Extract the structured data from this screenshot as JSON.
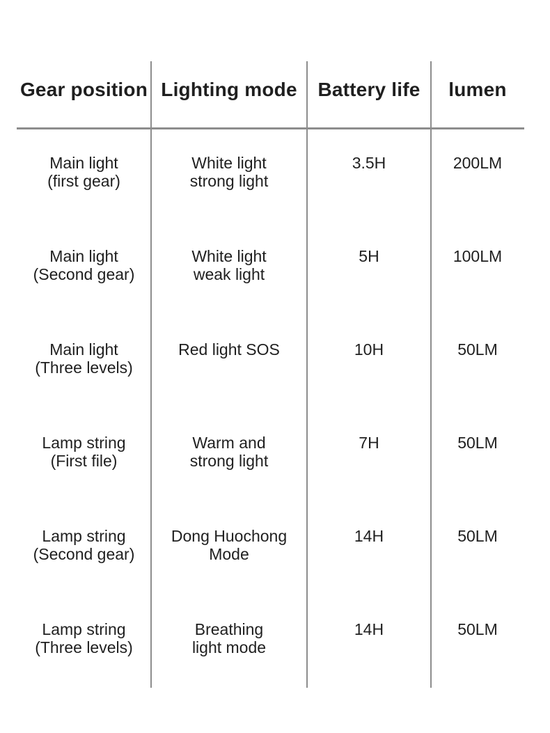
{
  "chart_data": {
    "type": "table",
    "title": "",
    "columns": [
      "Gear position",
      "Lighting mode",
      "Battery life",
      "lumen"
    ],
    "rows": [
      [
        "Main light\n(first gear)",
        "White light\nstrong light",
        "3.5H",
        "200LM"
      ],
      [
        "Main light\n(Second gear)",
        "White light\nweak light",
        "5H",
        "100LM"
      ],
      [
        "Main light\n(Three levels)",
        "Red light SOS",
        "10H",
        "50LM"
      ],
      [
        "Lamp string\n(First file)",
        "Warm and\nstrong light",
        "7H",
        "50LM"
      ],
      [
        "Lamp string\n(Second gear)",
        "Dong Huochong\nMode",
        "14H",
        "50LM"
      ],
      [
        "Lamp string\n(Three levels)",
        "Breathing\nlight mode",
        "14H",
        "50LM"
      ]
    ],
    "layout": {
      "grid": "vertical column dividers + single horizontal rule under header",
      "legend_position": "none"
    }
  },
  "colors": {
    "background": "#ffffff",
    "text": "#1f1f1f",
    "line": "#8d8d8d"
  }
}
